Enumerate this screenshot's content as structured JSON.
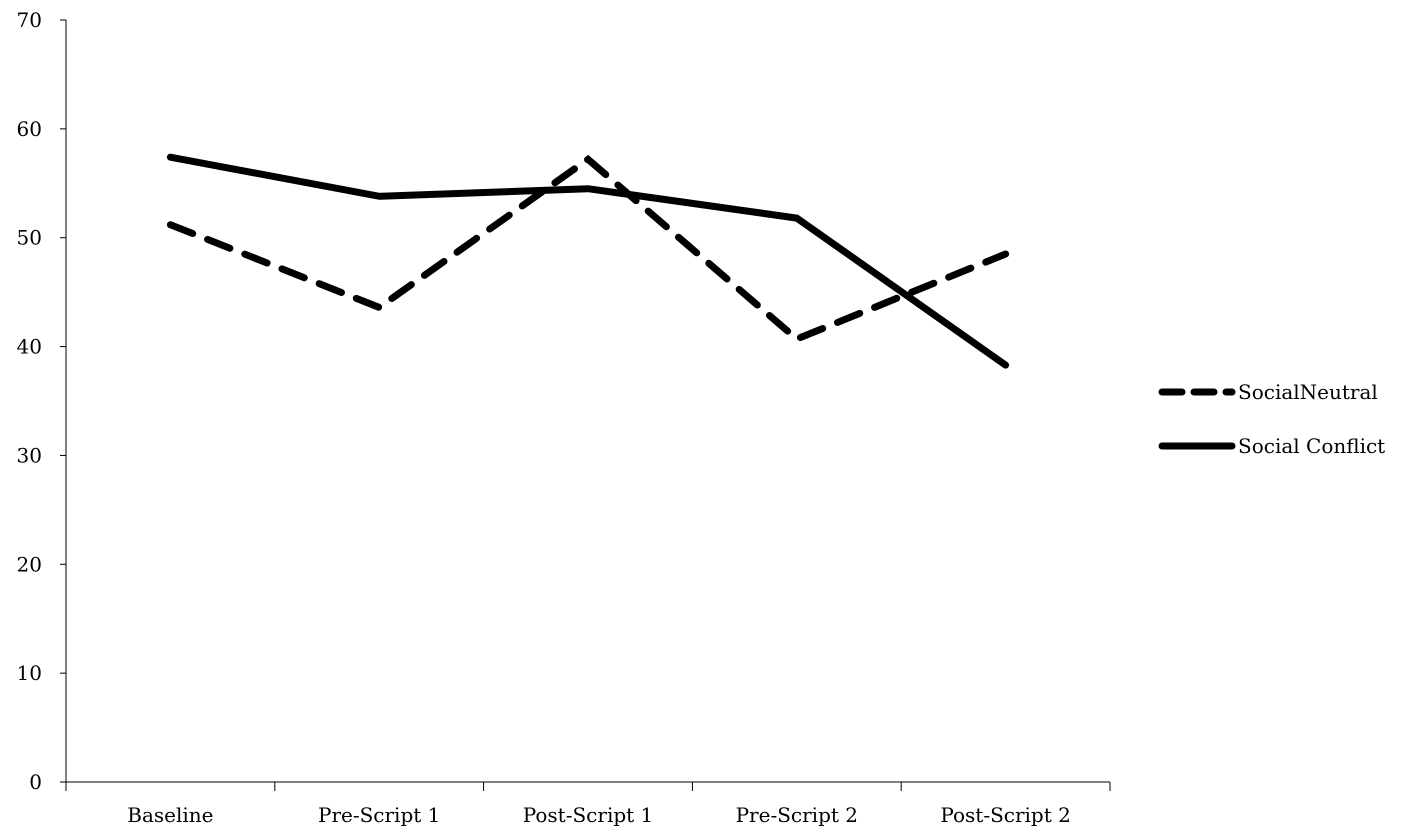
{
  "chart_data": {
    "type": "line",
    "title": "",
    "xlabel": "",
    "ylabel": "",
    "categories": [
      "Baseline",
      "Pre-Script 1",
      "Post-Script 1",
      "Pre-Script 2",
      "Post-Script 2"
    ],
    "ylim": [
      0,
      70
    ],
    "yticks": [
      0,
      10,
      20,
      30,
      40,
      50,
      60,
      70
    ],
    "grid": false,
    "legend_position": "right",
    "series": [
      {
        "name": "SocialNeutral",
        "style": "dashed",
        "color": "#000000",
        "values": [
          51.2,
          43.6,
          57.2,
          40.7,
          48.5
        ]
      },
      {
        "name": "Social Conflict",
        "style": "solid",
        "color": "#000000",
        "values": [
          57.4,
          53.8,
          54.5,
          51.8,
          38.3
        ]
      }
    ]
  }
}
